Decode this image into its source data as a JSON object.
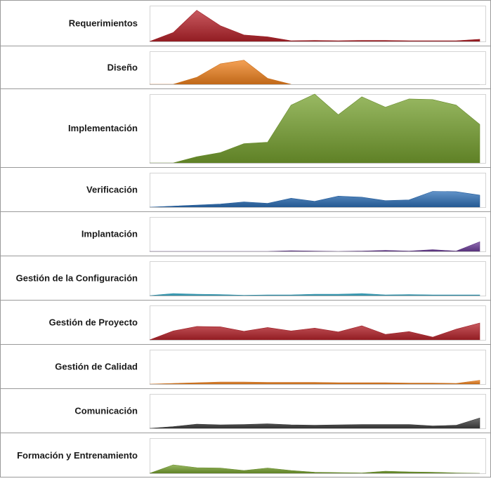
{
  "chart_data": {
    "type": "area",
    "layout": "small-multiples",
    "x_points": 15,
    "grid": false,
    "legend": "none",
    "panels": [
      {
        "label": "Requerimientos",
        "color": "#b7232b",
        "ylim": [
          0,
          10
        ],
        "values": [
          0,
          2.5,
          8.7,
          4.4,
          1.8,
          1.3,
          0.2,
          0.3,
          0.2,
          0.3,
          0.3,
          0.2,
          0.2,
          0.2,
          0.6
        ]
      },
      {
        "label": "Diseño",
        "color": "#f0821e",
        "ylim": [
          0,
          10
        ],
        "values": [
          0,
          0,
          2.1,
          6.2,
          7.3,
          1.8,
          0,
          null,
          null,
          null,
          null,
          null,
          null,
          null,
          null
        ]
      },
      {
        "label": "Implementación",
        "color": "#77a12f",
        "ylim": [
          0,
          10
        ],
        "values": [
          0,
          0,
          0.9,
          1.5,
          2.8,
          3.0,
          8.4,
          10.0,
          7.0,
          9.6,
          8.1,
          9.3,
          9.2,
          8.4,
          5.6
        ]
      },
      {
        "label": "Verificación",
        "color": "#2d6fb7",
        "ylim": [
          0,
          10
        ],
        "values": [
          0,
          0.3,
          0.6,
          0.9,
          1.5,
          1.1,
          2.6,
          1.7,
          3.2,
          2.9,
          1.9,
          2.1,
          4.6,
          4.5,
          3.5
        ]
      },
      {
        "label": "Implantación",
        "color": "#6d3e9a",
        "ylim": [
          0,
          10
        ],
        "values": [
          0,
          0,
          0,
          0,
          0,
          0,
          0.2,
          0.1,
          0,
          0.1,
          0.3,
          0.1,
          0.5,
          0.1,
          2.8
        ]
      },
      {
        "label": "Gestión de la Configuración",
        "color": "#2aa0be",
        "ylim": [
          0,
          10
        ],
        "values": [
          0,
          0.6,
          0.4,
          0.3,
          0.1,
          0.2,
          0.2,
          0.4,
          0.4,
          0.6,
          0.2,
          0.3,
          0.2,
          0.2,
          0.2
        ]
      },
      {
        "label": "Gestión de Proyecto",
        "color": "#b7232b",
        "ylim": [
          0,
          10
        ],
        "values": [
          0,
          2.6,
          3.9,
          3.8,
          2.5,
          3.6,
          2.6,
          3.4,
          2.3,
          4.1,
          1.6,
          2.4,
          0.8,
          3.1,
          4.9
        ]
      },
      {
        "label": "Gestión de Calidad",
        "color": "#f0821e",
        "ylim": [
          0,
          10
        ],
        "values": [
          0,
          0.2,
          0.4,
          0.6,
          0.6,
          0.5,
          0.5,
          0.5,
          0.4,
          0.4,
          0.4,
          0.3,
          0.3,
          0.2,
          1.1
        ]
      },
      {
        "label": "Comunicación",
        "color": "#404040",
        "ylim": [
          0,
          10
        ],
        "values": [
          0,
          0.5,
          1.2,
          1.0,
          1.1,
          1.3,
          1.0,
          0.9,
          1.0,
          1.1,
          1.1,
          1.1,
          0.7,
          0.9,
          3.0
        ]
      },
      {
        "label": "Formación y Entrenamiento",
        "color": "#77a12f",
        "ylim": [
          0,
          10
        ],
        "values": [
          0,
          2.4,
          1.6,
          1.5,
          0.8,
          1.5,
          0.8,
          0.3,
          0.2,
          0.1,
          0.6,
          0.4,
          0.3,
          0.1,
          0
        ]
      }
    ]
  }
}
